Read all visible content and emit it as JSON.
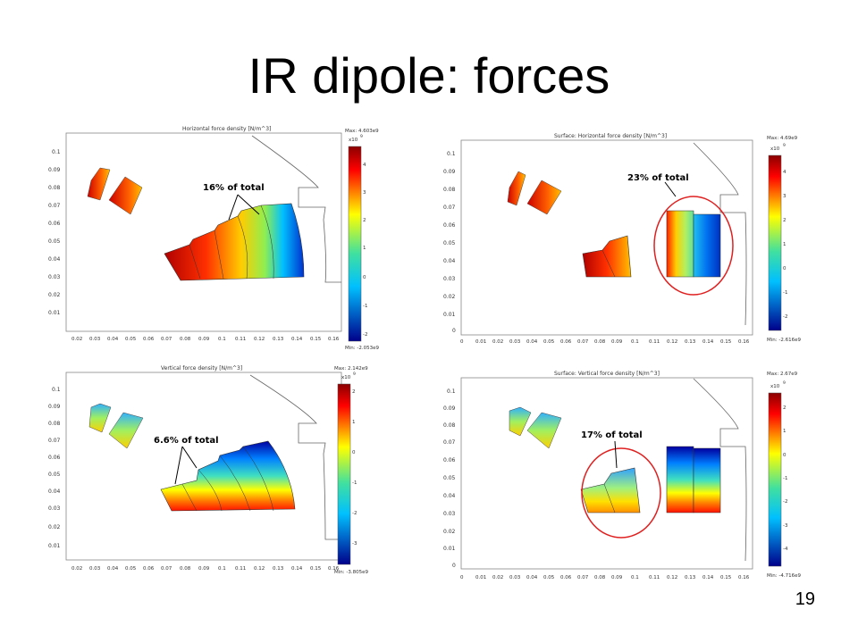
{
  "slide": {
    "title": "IR dipole: forces",
    "page_number": "19"
  },
  "panels": [
    {
      "plot_title": "Horizontal force density [N/m^3]",
      "max_label": "Max: 4.603e9",
      "min_label": "Min: -2.053e9",
      "scale_label": "x10",
      "scale_exp": "9",
      "colorbar_ticks": [
        "4",
        "3",
        "2",
        "1",
        "0",
        "-1",
        "-2"
      ],
      "yticks": [
        "0.1",
        "0.09",
        "0.08",
        "0.07",
        "0.06",
        "0.05",
        "0.04",
        "0.03",
        "0.02",
        "0.01"
      ],
      "xticks": [
        "0.02",
        "0.03",
        "0.04",
        "0.05",
        "0.06",
        "0.07",
        "0.08",
        "0.09",
        "0.1",
        "0.11",
        "0.12",
        "0.13",
        "0.14",
        "0.15",
        "0.16"
      ],
      "annotation": "16% of total"
    },
    {
      "plot_title": "Surface: Horizontal force density [N/m^3]",
      "max_label": "Max: 4.69e9",
      "min_label": "Min: -2.616e9",
      "scale_label": "x10",
      "scale_exp": "9",
      "colorbar_ticks": [
        "4",
        "3",
        "2",
        "1",
        "0",
        "-1",
        "-2"
      ],
      "yticks": [
        "0.1",
        "0.09",
        "0.08",
        "0.07",
        "0.06",
        "0.05",
        "0.04",
        "0.03",
        "0.02",
        "0.01",
        "0"
      ],
      "xticks": [
        "0",
        "0.01",
        "0.02",
        "0.03",
        "0.04",
        "0.05",
        "0.06",
        "0.07",
        "0.08",
        "0.09",
        "0.1",
        "0.11",
        "0.12",
        "0.13",
        "0.14",
        "0.15",
        "0.16"
      ],
      "annotation": "23% of total"
    },
    {
      "plot_title": "Vertical force density [N/m^3]",
      "max_label": "Max: 2.142e9",
      "min_label": "Min: -3.805e9",
      "scale_label": "x10",
      "scale_exp": "9",
      "colorbar_ticks": [
        "2",
        "1",
        "0",
        "-1",
        "-2",
        "-3"
      ],
      "yticks": [
        "0.1",
        "0.09",
        "0.08",
        "0.07",
        "0.06",
        "0.05",
        "0.04",
        "0.03",
        "0.02",
        "0.01"
      ],
      "xticks": [
        "0.02",
        "0.03",
        "0.04",
        "0.05",
        "0.06",
        "0.07",
        "0.08",
        "0.09",
        "0.1",
        "0.11",
        "0.12",
        "0.13",
        "0.14",
        "0.15",
        "0.16"
      ],
      "annotation": "6.6% of total"
    },
    {
      "plot_title": "Surface: Vertical force density [N/m^3]",
      "max_label": "Max: 2.67e9",
      "min_label": "Min: -4.716e9",
      "scale_label": "x10",
      "scale_exp": "9",
      "colorbar_ticks": [
        "2",
        "1",
        "0",
        "-1",
        "-2",
        "-3",
        "-4"
      ],
      "yticks": [
        "0.1",
        "0.09",
        "0.08",
        "0.07",
        "0.06",
        "0.05",
        "0.04",
        "0.03",
        "0.02",
        "0.01",
        "0"
      ],
      "xticks": [
        "0",
        "0.01",
        "0.02",
        "0.03",
        "0.04",
        "0.05",
        "0.06",
        "0.07",
        "0.08",
        "0.09",
        "0.1",
        "0.11",
        "0.12",
        "0.13",
        "0.14",
        "0.15",
        "0.16"
      ],
      "annotation": "17% of total"
    }
  ]
}
